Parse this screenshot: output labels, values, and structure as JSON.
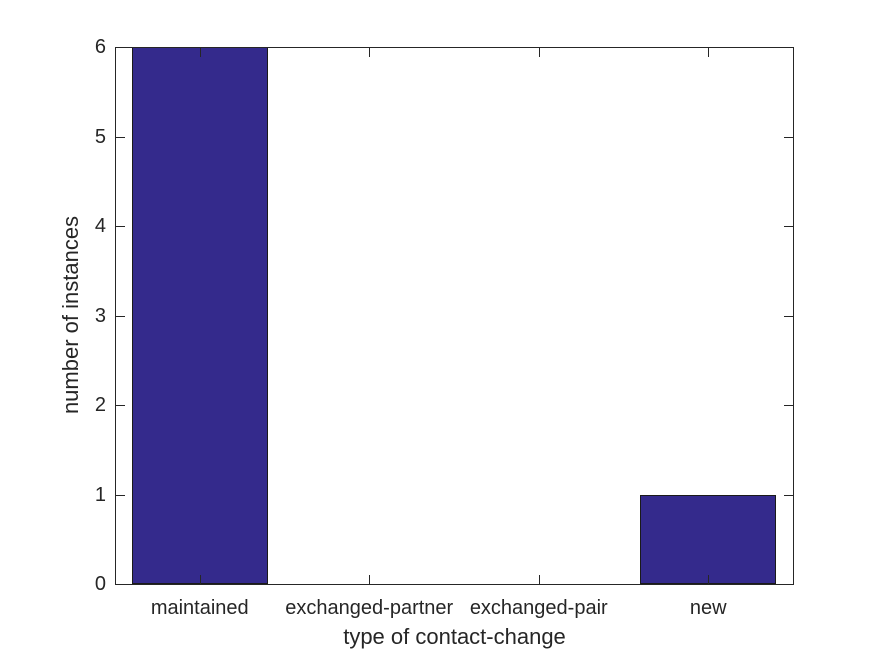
{
  "figure": {
    "background": "#ffffff"
  },
  "chart_data": {
    "type": "bar",
    "categories": [
      "maintained",
      "exchanged-partner",
      "exchanged-pair",
      "new"
    ],
    "values": [
      6,
      0,
      0,
      1
    ],
    "title": "",
    "xlabel": "type of contact-change",
    "ylabel": "number of instances",
    "ylim": [
      0,
      6
    ],
    "yticks": [
      0,
      1,
      2,
      3,
      4,
      5,
      6
    ],
    "bar_color": "#342A8C",
    "bar_edge_color": "#1a1a1a",
    "axis_color": "#262626",
    "text_color": "#262626",
    "bar_width_fraction": 0.8,
    "grid": false,
    "legend": null,
    "tick_direction": "in",
    "box": true
  }
}
